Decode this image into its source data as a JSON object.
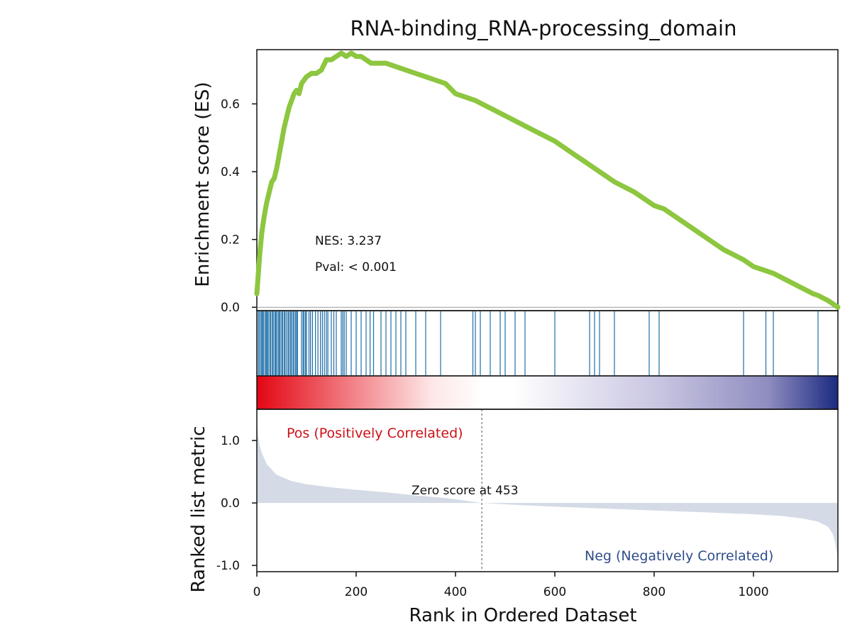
{
  "chart_data": {
    "type": "gsea_enrichment_plot",
    "title": "RNA-binding_RNA-processing_domain",
    "xlabel": "Rank in Ordered Dataset",
    "xlim": [
      0,
      1170
    ],
    "x_ticks": [
      0,
      200,
      400,
      600,
      800,
      1000
    ],
    "es_panel": {
      "ylabel": "Enrichment score (ES)",
      "ylim": [
        -0.01,
        0.76
      ],
      "y_ticks": [
        "0.0",
        "0.2",
        "0.4",
        "0.6"
      ],
      "y_tick_values": [
        0.0,
        0.2,
        0.4,
        0.6
      ],
      "line_color": "#8dc63f",
      "baseline_color": "#999999",
      "curve": {
        "x": [
          0,
          3,
          6,
          10,
          15,
          20,
          25,
          30,
          35,
          40,
          45,
          50,
          55,
          60,
          65,
          70,
          75,
          80,
          85,
          90,
          100,
          110,
          120,
          130,
          140,
          150,
          160,
          170,
          180,
          190,
          200,
          210,
          220,
          230,
          240,
          260,
          280,
          300,
          320,
          340,
          360,
          380,
          400,
          440,
          480,
          520,
          560,
          600,
          640,
          660,
          680,
          700,
          720,
          760,
          800,
          820,
          860,
          900,
          940,
          980,
          1000,
          1020,
          1040,
          1080,
          1120,
          1130,
          1150,
          1170
        ],
        "y": [
          0.04,
          0.1,
          0.16,
          0.22,
          0.27,
          0.31,
          0.34,
          0.37,
          0.38,
          0.41,
          0.45,
          0.49,
          0.53,
          0.56,
          0.59,
          0.61,
          0.63,
          0.64,
          0.63,
          0.66,
          0.68,
          0.69,
          0.69,
          0.7,
          0.73,
          0.73,
          0.74,
          0.75,
          0.74,
          0.75,
          0.74,
          0.74,
          0.73,
          0.72,
          0.72,
          0.72,
          0.71,
          0.7,
          0.69,
          0.68,
          0.67,
          0.66,
          0.63,
          0.61,
          0.58,
          0.55,
          0.52,
          0.49,
          0.45,
          0.43,
          0.41,
          0.39,
          0.37,
          0.34,
          0.3,
          0.29,
          0.25,
          0.21,
          0.17,
          0.14,
          0.12,
          0.11,
          0.1,
          0.07,
          0.04,
          0.035,
          0.02,
          0.0
        ]
      }
    },
    "hits": {
      "color": "#1f6fa8",
      "positions": [
        3,
        5,
        8,
        10,
        12,
        14,
        17,
        19,
        21,
        23,
        26,
        28,
        31,
        33,
        36,
        38,
        40,
        43,
        45,
        47,
        50,
        52,
        55,
        57,
        60,
        63,
        65,
        68,
        70,
        73,
        75,
        78,
        80,
        82,
        90,
        93,
        95,
        98,
        100,
        105,
        108,
        112,
        118,
        123,
        128,
        132,
        136,
        140,
        143,
        150,
        155,
        160,
        170,
        173,
        176,
        180,
        190,
        200,
        210,
        220,
        228,
        235,
        250,
        260,
        270,
        280,
        290,
        300,
        320,
        340,
        370,
        435,
        440,
        450,
        470,
        490,
        500,
        520,
        540,
        600,
        670,
        680,
        690,
        720,
        790,
        810,
        980,
        1025,
        1040,
        1130
      ]
    },
    "color_bar": {
      "colors": [
        "#e30613",
        "#fde6e6",
        "#ffffff",
        "#ffffff",
        "#c6c3e0",
        "#8f8dc0",
        "#1b2a80"
      ],
      "stops": [
        0.0,
        0.3,
        0.39,
        0.44,
        0.7,
        0.88,
        1.0
      ]
    },
    "metric_panel": {
      "ylabel": "Ranked list metric",
      "ylim": [
        -1.1,
        1.5
      ],
      "y_ticks": [
        "1.0",
        "0.0",
        "-1.0"
      ],
      "y_tick_values": [
        1.0,
        0.0,
        -1.0
      ],
      "fill_color": "#d4dbe6",
      "curve": {
        "x": [
          0,
          1,
          3,
          6,
          10,
          20,
          40,
          70,
          100,
          150,
          200,
          260,
          320,
          380,
          453,
          520,
          600,
          700,
          800,
          900,
          1000,
          1060,
          1100,
          1130,
          1150,
          1160,
          1165,
          1170
        ],
        "y": [
          1.5,
          1.2,
          1.05,
          0.92,
          0.8,
          0.62,
          0.45,
          0.35,
          0.3,
          0.25,
          0.21,
          0.17,
          0.12,
          0.08,
          0.0,
          -0.03,
          -0.06,
          -0.09,
          -0.12,
          -0.15,
          -0.18,
          -0.21,
          -0.25,
          -0.3,
          -0.38,
          -0.5,
          -0.65,
          -0.9
        ]
      },
      "zero_cross": 453,
      "pos_label": "Pos (Positively Correlated)",
      "pos_color": "#cc1118",
      "neg_label": "Neg (Negatively Correlated)",
      "neg_color": "#2f4d8a",
      "zero_label": "Zero score at 453"
    },
    "annotations": {
      "nes": "NES: 3.237",
      "pval": "Pval: < 0.001"
    }
  }
}
